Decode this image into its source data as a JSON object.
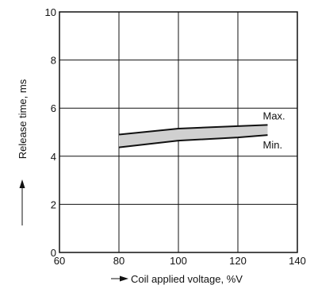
{
  "chart_data": {
    "type": "area",
    "xlabel": "Coil applied voltage, %V",
    "ylabel": "Release time, ms",
    "xlim": [
      60,
      140
    ],
    "ylim": [
      0,
      10
    ],
    "x_ticks": [
      60,
      80,
      100,
      120,
      140
    ],
    "y_ticks": [
      0,
      2,
      4,
      6,
      8,
      10
    ],
    "grid": true,
    "band_color": "#d0d0d0",
    "line_color": "#111111",
    "series": [
      {
        "name": "Max.",
        "x": [
          80,
          100,
          120,
          130
        ],
        "y": [
          4.9,
          5.15,
          5.25,
          5.3
        ]
      },
      {
        "name": "Min.",
        "x": [
          80,
          100,
          120,
          130
        ],
        "y": [
          4.37,
          4.65,
          4.78,
          4.88
        ]
      }
    ]
  }
}
